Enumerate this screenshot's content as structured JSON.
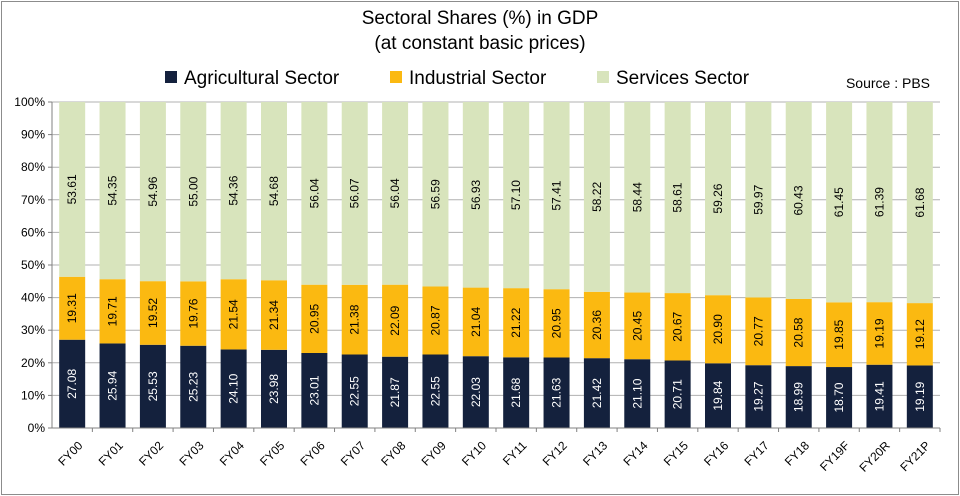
{
  "colors": {
    "agri": "#14213d",
    "ind": "#fbb911",
    "serv": "#d8e4bc",
    "grid": "#b0b0b0",
    "axis": "#808080"
  },
  "chart_data": {
    "type": "bar",
    "stacked": true,
    "percent_stacked": true,
    "title": "Sectoral Shares (%) in GDP",
    "subtitle": "(at constant basic prices)",
    "source": "Source : PBS",
    "categories": [
      "FY00",
      "FY01",
      "FY02",
      "FY03",
      "FY04",
      "FY05",
      "FY06",
      "FY07",
      "FY08",
      "FY09",
      "FY10",
      "FY11",
      "FY12",
      "FY13",
      "FY14",
      "FY15",
      "FY16",
      "FY17",
      "FY18",
      "FY19F",
      "FY20R",
      "FY21P"
    ],
    "series": [
      {
        "name": "Agricultural Sector",
        "color": "#14213d",
        "label_color": "#ffffff",
        "values": [
          "27.08",
          "25.94",
          "25.53",
          "25.23",
          "24.10",
          "23.98",
          "23.01",
          "22.55",
          "21.87",
          "22.55",
          "22.03",
          "21.68",
          "21.63",
          "21.42",
          "21.10",
          "20.71",
          "19.84",
          "19.27",
          "18.99",
          "18.70",
          "19.41",
          "19.19"
        ]
      },
      {
        "name": "Industrial Sector",
        "color": "#fbb911",
        "label_color": "#000000",
        "values": [
          "19.31",
          "19.71",
          "19.52",
          "19.76",
          "21.54",
          "21.34",
          "20.95",
          "21.38",
          "22.09",
          "20.87",
          "21.04",
          "21.22",
          "20.95",
          "20.36",
          "20.45",
          "20.67",
          "20.90",
          "20.77",
          "20.58",
          "19.85",
          "19.19",
          "19.12"
        ]
      },
      {
        "name": "Services Sector",
        "color": "#d8e4bc",
        "label_color": "#000000",
        "values": [
          "53.61",
          "54.35",
          "54.96",
          "55.00",
          "54.36",
          "54.68",
          "56.04",
          "56.07",
          "56.04",
          "56.59",
          "56.93",
          "57.10",
          "57.41",
          "58.22",
          "58.44",
          "58.61",
          "59.26",
          "59.97",
          "60.43",
          "61.45",
          "61.39",
          "61.68"
        ]
      }
    ],
    "y_ticks": [
      "0%",
      "10%",
      "20%",
      "30%",
      "40%",
      "50%",
      "60%",
      "70%",
      "80%",
      "90%",
      "100%"
    ],
    "ylim": [
      0,
      100
    ],
    "grid": true,
    "legend_position": "top"
  }
}
